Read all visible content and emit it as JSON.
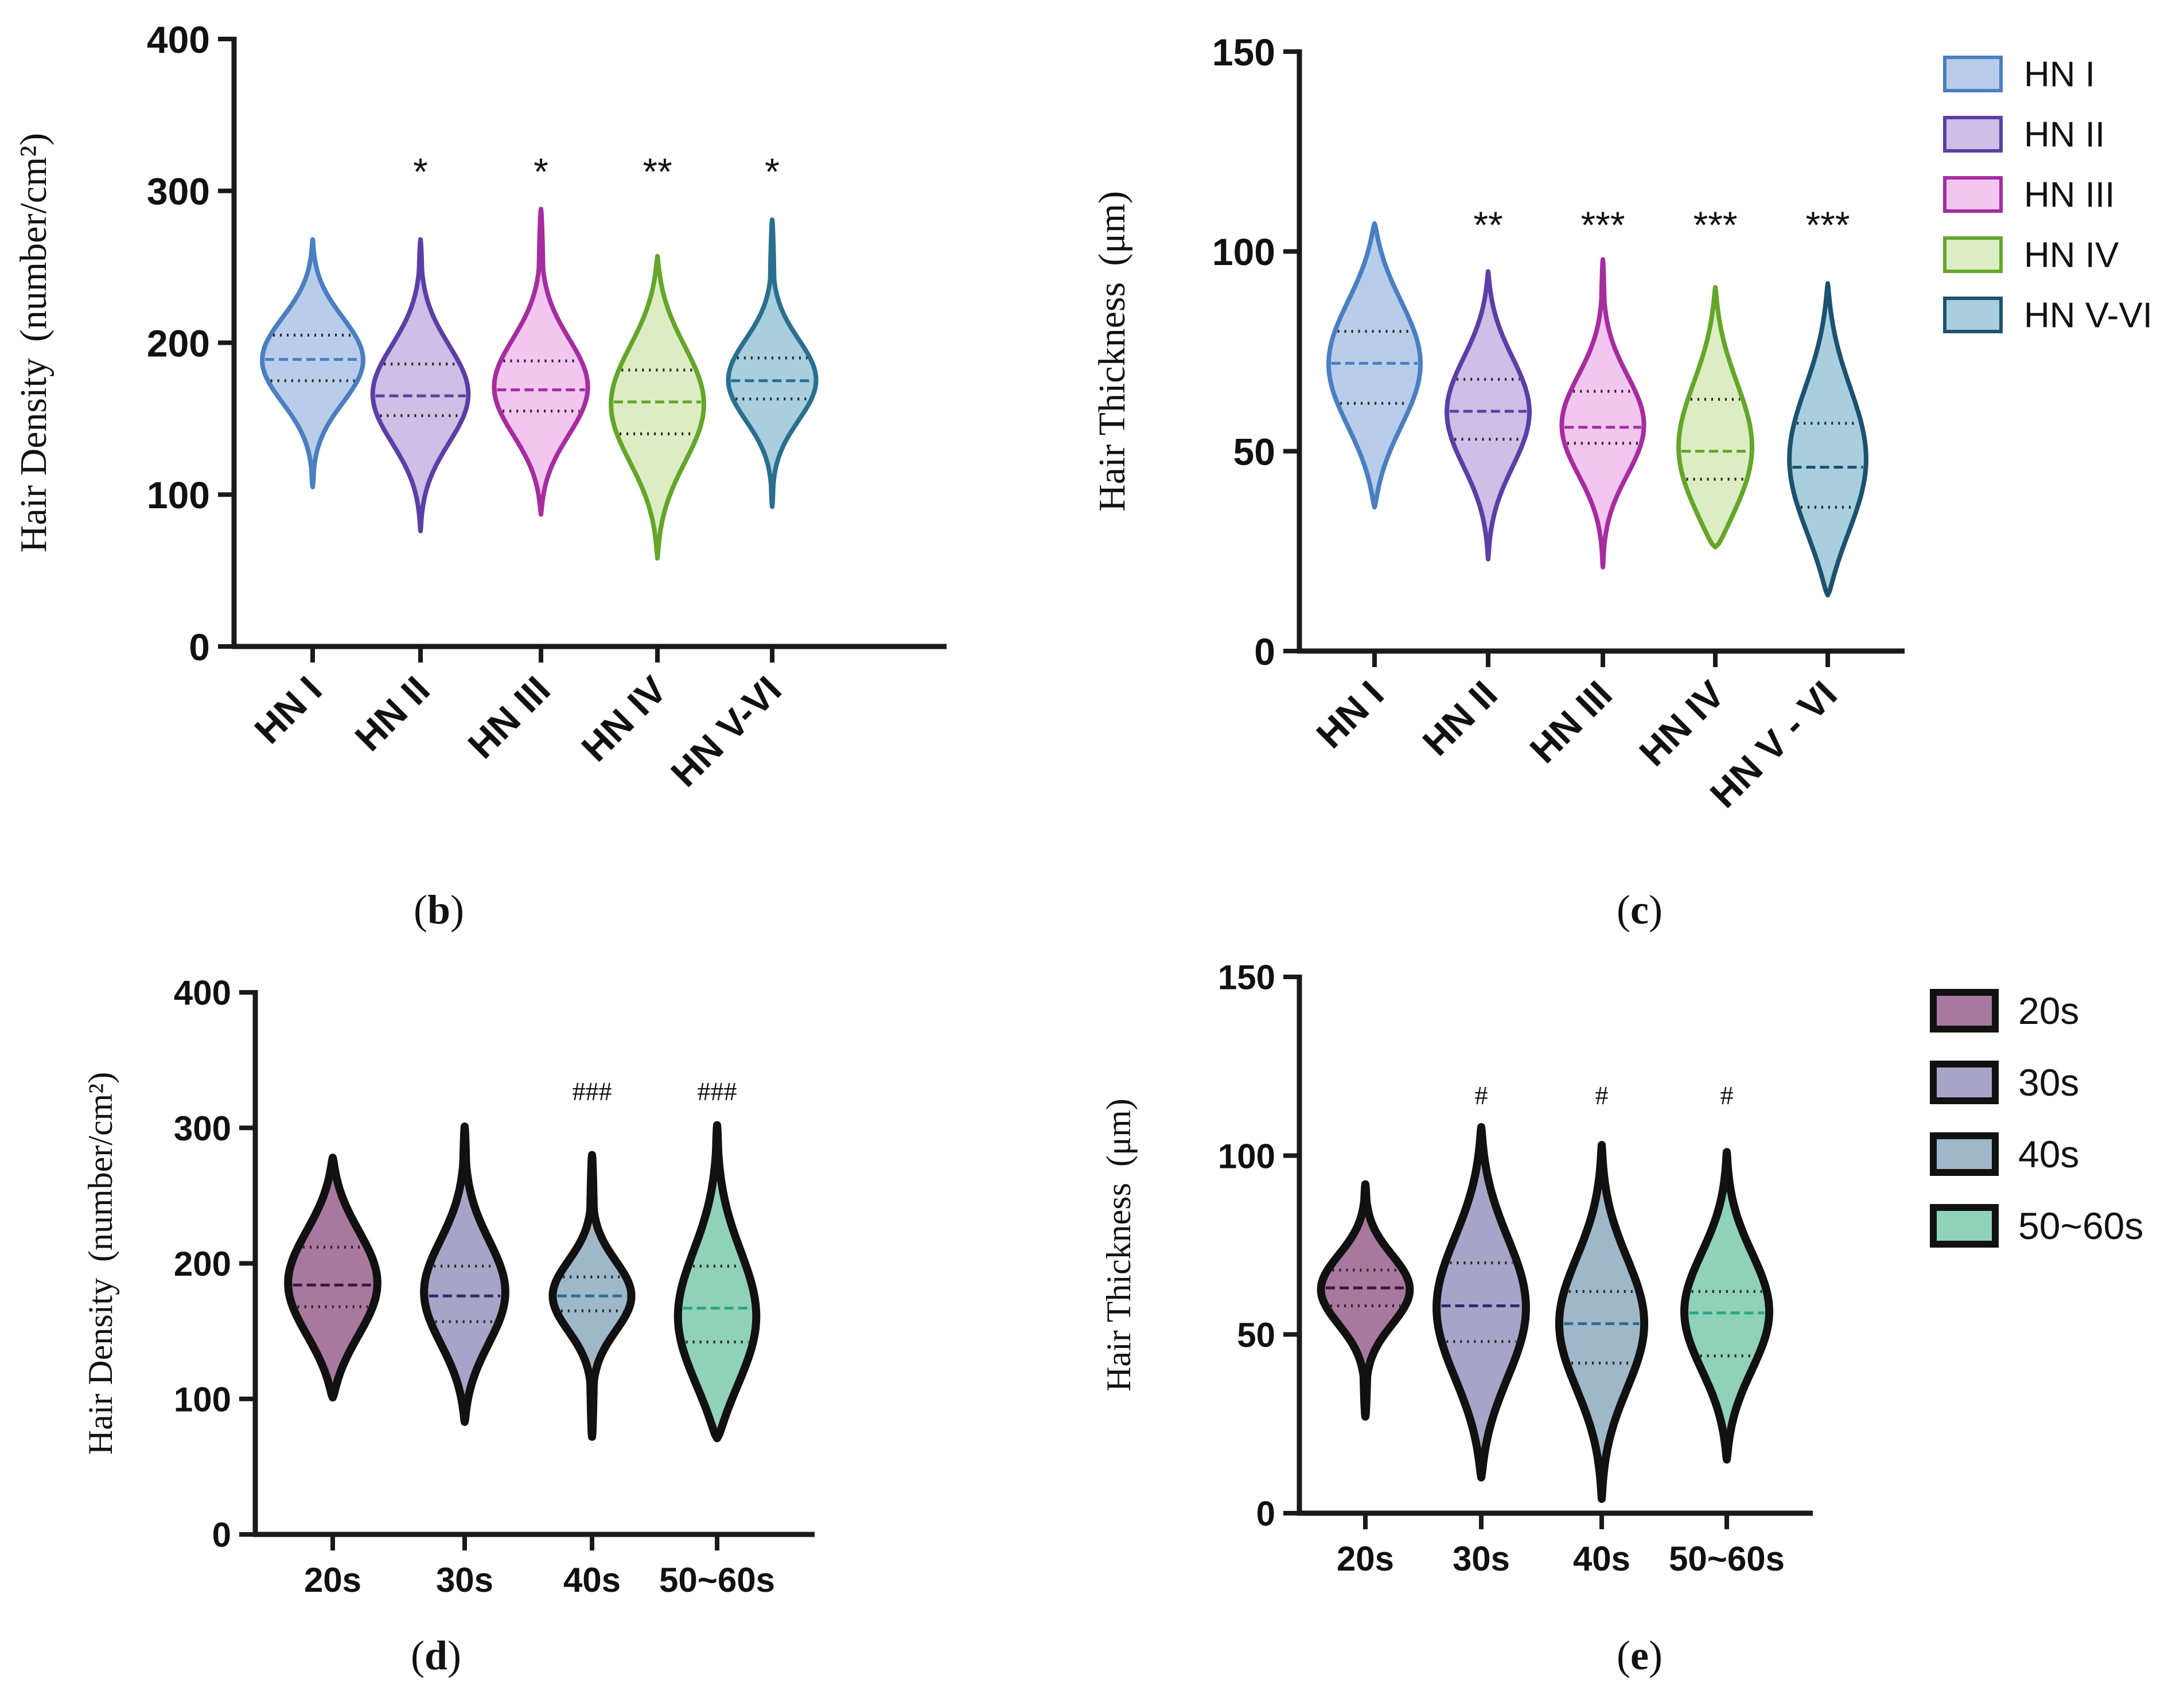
{
  "chart_data": [
    {
      "id": "b",
      "type": "violin",
      "panel_label": "b",
      "title": "",
      "ylabel": "Hair Density",
      "ylabel_unit": "(number/cm²)",
      "ylim": [
        0,
        400
      ],
      "yticks": [
        0,
        100,
        200,
        300,
        400
      ],
      "categories": [
        "HN I",
        "HN II",
        "HN III",
        "HN IV",
        "HN V-VI"
      ],
      "colors": [
        "#4a7fc1",
        "#5b3fa6",
        "#a62ca0",
        "#64a62a",
        "#2a6f8f"
      ],
      "fills": [
        "#b9cdea",
        "#cdbfe5",
        "#f2c6ef",
        "#dcedc4",
        "#a9cedd"
      ],
      "violins": [
        {
          "min": 105,
          "max": 268,
          "q1": 175,
          "median": 189,
          "q3": 205,
          "mode": 189,
          "width": 1.0
        },
        {
          "min": 76,
          "max": 268,
          "q1": 152,
          "median": 165,
          "q3": 186,
          "mode": 165,
          "width": 0.95
        },
        {
          "min": 87,
          "max": 288,
          "q1": 155,
          "median": 169,
          "q3": 188,
          "mode": 168,
          "width": 0.95
        },
        {
          "min": 58,
          "max": 257,
          "q1": 140,
          "median": 161,
          "q3": 182,
          "mode": 160,
          "width": 0.92
        },
        {
          "min": 92,
          "max": 281,
          "q1": 163,
          "median": 175,
          "q3": 190,
          "mode": 174,
          "width": 0.88
        }
      ],
      "significance": [
        "",
        "*",
        "*",
        "**",
        "*"
      ],
      "legend": []
    },
    {
      "id": "c",
      "type": "violin",
      "panel_label": "c",
      "title": "",
      "ylabel": "Hair Thickness",
      "ylabel_unit": "(μm)",
      "ylim": [
        0,
        150
      ],
      "yticks": [
        0,
        50,
        100,
        150
      ],
      "categories": [
        "HN I",
        "HN II",
        "HN III",
        "HN IV",
        "HN V - VI"
      ],
      "colors": [
        "#4a7fc1",
        "#5b3fa6",
        "#a62ca0",
        "#64a62a",
        "#1c5270"
      ],
      "fills": [
        "#b9cdea",
        "#cdbfe5",
        "#f2c6ef",
        "#dcedc4",
        "#a9cedd"
      ],
      "violins": [
        {
          "min": 36,
          "max": 107,
          "q1": 62,
          "median": 72,
          "q3": 80,
          "mode": 72,
          "width": 1.0
        },
        {
          "min": 23,
          "max": 95,
          "q1": 53,
          "median": 60,
          "q3": 68,
          "mode": 60,
          "width": 0.9
        },
        {
          "min": 21,
          "max": 98,
          "q1": 52,
          "median": 56,
          "q3": 65,
          "mode": 56,
          "width": 0.9
        },
        {
          "min": 26,
          "max": 91,
          "q1": 43,
          "median": 50,
          "q3": 63,
          "mode": 47,
          "width": 0.85
        },
        {
          "min": 14,
          "max": 92,
          "q1": 36,
          "median": 46,
          "q3": 57,
          "mode": 46,
          "width": 0.85
        }
      ],
      "significance": [
        "",
        "**",
        "***",
        "***",
        "***"
      ],
      "legend": [
        "HN I",
        "HN II",
        "HN III",
        "HN IV",
        "HN V-VI"
      ]
    },
    {
      "id": "d",
      "type": "violin",
      "panel_label": "d",
      "title": "",
      "ylabel": "Hair Density",
      "ylabel_unit": "(number/cm²)",
      "ylim": [
        0,
        400
      ],
      "yticks": [
        0,
        100,
        200,
        300,
        400
      ],
      "categories": [
        "20s",
        "30s",
        "40s",
        "50~60s"
      ],
      "colors": [
        "#111111",
        "#111111",
        "#111111",
        "#111111"
      ],
      "fills": [
        "#a8789e",
        "#a7a4c8",
        "#9fb8c9",
        "#8fd2b8"
      ],
      "median_colors": [
        "#3b1638",
        "#2e2a72",
        "#2c6f93",
        "#2aa883"
      ],
      "violins": [
        {
          "min": 101,
          "max": 278,
          "q1": 168,
          "median": 184,
          "q3": 212,
          "mode": 184,
          "width": 1.0
        },
        {
          "min": 83,
          "max": 301,
          "q1": 157,
          "median": 176,
          "q3": 198,
          "mode": 176,
          "width": 0.92
        },
        {
          "min": 72,
          "max": 280,
          "q1": 165,
          "median": 176,
          "q3": 190,
          "mode": 176,
          "width": 0.88
        },
        {
          "min": 71,
          "max": 302,
          "q1": 142,
          "median": 167,
          "q3": 198,
          "mode": 152,
          "width": 0.92
        }
      ],
      "significance": [
        "",
        "",
        "###",
        "###"
      ],
      "legend": []
    },
    {
      "id": "e",
      "type": "violin",
      "panel_label": "e",
      "title": "",
      "ylabel": "Hair Thickness",
      "ylabel_unit": "(μm)",
      "ylim": [
        0,
        150
      ],
      "yticks": [
        0,
        50,
        100,
        150
      ],
      "categories": [
        "20s",
        "30s",
        "40s",
        "50~60s"
      ],
      "colors": [
        "#111111",
        "#111111",
        "#111111",
        "#111111"
      ],
      "fills": [
        "#a8789e",
        "#a7a4c8",
        "#9fb8c9",
        "#8fd2b8"
      ],
      "median_colors": [
        "#3b1638",
        "#2e2a72",
        "#2c6f93",
        "#2aa883"
      ],
      "violins": [
        {
          "min": 27,
          "max": 92,
          "q1": 58,
          "median": 63,
          "q3": 68,
          "mode": 63,
          "width": 1.0
        },
        {
          "min": 10,
          "max": 108,
          "q1": 48,
          "median": 58,
          "q3": 70,
          "mode": 57,
          "width": 1.0
        },
        {
          "min": 4,
          "max": 103,
          "q1": 42,
          "median": 53,
          "q3": 62,
          "mode": 53,
          "width": 0.95
        },
        {
          "min": 15,
          "max": 101,
          "q1": 44,
          "median": 56,
          "q3": 62,
          "mode": 56,
          "width": 0.95
        }
      ],
      "significance": [
        "",
        "#",
        "#",
        "#"
      ],
      "legend": [
        "20s",
        "30s",
        "40s",
        "50~60s"
      ]
    }
  ]
}
